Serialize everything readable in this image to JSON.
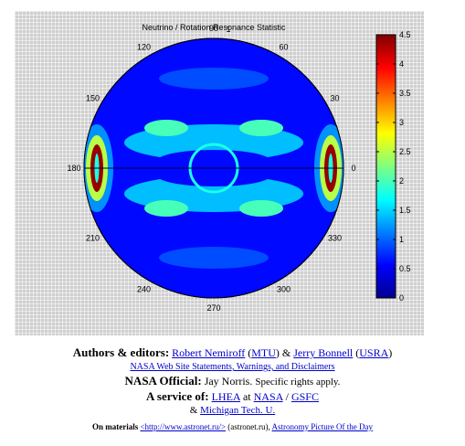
{
  "chart_data": {
    "type": "heatmap",
    "projection": "polar disk",
    "title": "Neutrino / Rotation Resonance Statistic",
    "angle_labels": [
      {
        "angle": 90,
        "text": "90"
      },
      {
        "angle": 84,
        "text": "1"
      },
      {
        "angle": 60,
        "text": "60"
      },
      {
        "angle": 30,
        "text": "30"
      },
      {
        "angle": 0,
        "text": "0"
      },
      {
        "angle": 330,
        "text": "330"
      },
      {
        "angle": 300,
        "text": "300"
      },
      {
        "angle": 270,
        "text": "270"
      },
      {
        "angle": 240,
        "text": "240"
      },
      {
        "angle": 210,
        "text": "210"
      },
      {
        "angle": 180,
        "text": "180"
      },
      {
        "angle": 150,
        "text": "150"
      },
      {
        "angle": 120,
        "text": "120"
      }
    ],
    "colorbar": {
      "min": 0,
      "max": 4.5,
      "ticks": [
        "0",
        "0.5",
        "1",
        "1.5",
        "2",
        "2.5",
        "3",
        "3.5",
        "4",
        "4.5"
      ],
      "colormap": [
        "#00008f",
        "#0000ff",
        "#00ffff",
        "#ffff00",
        "#ff0000",
        "#800000"
      ]
    },
    "field": {
      "background_level": 0.6,
      "features": [
        {
          "kind": "band",
          "level": 1.4,
          "note": "cyan band above equator"
        },
        {
          "kind": "band",
          "level": 1.4,
          "note": "cyan band below equator"
        },
        {
          "kind": "ring",
          "level": 1.8,
          "note": "small ring at disk center"
        },
        {
          "kind": "limb",
          "level": 4.4,
          "note": "hot spot near 180"
        },
        {
          "kind": "limb",
          "level": 4.4,
          "note": "hot spot near 0"
        }
      ]
    },
    "equator_line": true
  },
  "credits": {
    "authors_label": "Authors & editors:",
    "author1": "Robert Nemiroff",
    "author1_aff": "MTU",
    "amp": "&",
    "author2": "Jerry Bonnell",
    "author2_aff": "USRA",
    "disclaimer_link": "NASA Web Site Statements, Warnings, and Disclaimers",
    "official_label": "NASA Official:",
    "official_name": "Jay Norris.",
    "rights": "Specific rights apply.",
    "service_label": "A service of:",
    "service1": "LHEA",
    "at": "at",
    "service2": "NASA",
    "slash": "/",
    "service3": "GSFC",
    "amp2": "&",
    "service4": "Michigan Tech. U.",
    "materials_label": "On materials",
    "materials_link": "<http://www.astronet.ru/>",
    "materials_site": "(astronet.ru),",
    "apod_link": "Astronomy Picture Of the Day"
  }
}
